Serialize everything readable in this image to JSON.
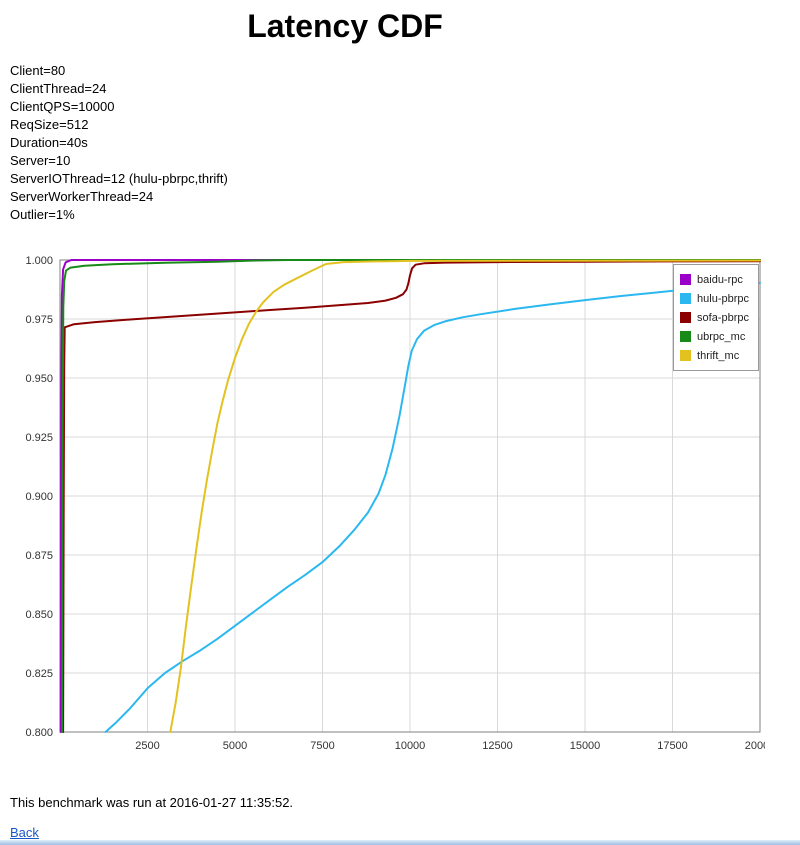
{
  "page": {
    "title": "Latency CDF",
    "bottom_strip_color": "#9dbfe4"
  },
  "params": {
    "lines": [
      "Client=80",
      "ClientThread=24",
      "ClientQPS=10000",
      "ReqSize=512",
      "Duration=40s",
      "Server=10",
      "ServerIOThread=12 (hulu-pbrpc,thrift)",
      "ServerWorkerThread=24",
      "Outlier=1%"
    ]
  },
  "footer": {
    "note": "This benchmark was run at 2016-01-27 11:35:52.",
    "back_label": "Back"
  },
  "chart_data": {
    "type": "line",
    "title": "Latency CDF",
    "xlabel": "",
    "ylabel": "",
    "xlim": [
      0,
      20000
    ],
    "ylim": [
      0.8,
      1.0
    ],
    "xticks": [
      2500,
      5000,
      7500,
      10000,
      12500,
      15000,
      17500,
      20000
    ],
    "yticks": [
      0.8,
      0.825,
      0.85,
      0.875,
      0.9,
      0.925,
      0.95,
      0.975,
      1.0
    ],
    "grid": true,
    "legend_position": "top-right",
    "series": [
      {
        "name": "baidu-rpc",
        "color": "#9a00c8",
        "points": [
          [
            20,
            0.8
          ],
          [
            35,
            0.94
          ],
          [
            55,
            0.985
          ],
          [
            90,
            0.996
          ],
          [
            160,
            0.999
          ],
          [
            320,
            1.0
          ],
          [
            20000,
            1.0
          ]
        ]
      },
      {
        "name": "hulu-pbrpc",
        "color": "#2bb8f0",
        "points": [
          [
            1300,
            0.8
          ],
          [
            1600,
            0.804
          ],
          [
            2000,
            0.81
          ],
          [
            2500,
            0.8185
          ],
          [
            3000,
            0.825
          ],
          [
            3500,
            0.83
          ],
          [
            4000,
            0.8345
          ],
          [
            4500,
            0.8395
          ],
          [
            5000,
            0.845
          ],
          [
            5500,
            0.8505
          ],
          [
            6000,
            0.856
          ],
          [
            6500,
            0.8615
          ],
          [
            7000,
            0.8665
          ],
          [
            7500,
            0.872
          ],
          [
            8000,
            0.879
          ],
          [
            8400,
            0.8855
          ],
          [
            8800,
            0.893
          ],
          [
            9100,
            0.901
          ],
          [
            9300,
            0.909
          ],
          [
            9500,
            0.92
          ],
          [
            9700,
            0.934
          ],
          [
            9850,
            0.9465
          ],
          [
            9950,
            0.955
          ],
          [
            10050,
            0.9615
          ],
          [
            10200,
            0.9665
          ],
          [
            10400,
            0.97
          ],
          [
            10700,
            0.9725
          ],
          [
            11000,
            0.974
          ],
          [
            11500,
            0.9757
          ],
          [
            12000,
            0.977
          ],
          [
            13000,
            0.9793
          ],
          [
            14000,
            0.9812
          ],
          [
            15000,
            0.983
          ],
          [
            16000,
            0.9847
          ],
          [
            17000,
            0.9862
          ],
          [
            18000,
            0.9877
          ],
          [
            19000,
            0.989
          ],
          [
            20000,
            0.9903
          ]
        ]
      },
      {
        "name": "sofa-pbrpc",
        "color": "#8b0000",
        "points": [
          [
            90,
            0.8
          ],
          [
            105,
            0.9
          ],
          [
            120,
            0.955
          ],
          [
            135,
            0.9715
          ],
          [
            400,
            0.9728
          ],
          [
            1000,
            0.9737
          ],
          [
            2000,
            0.9748
          ],
          [
            3000,
            0.9758
          ],
          [
            4000,
            0.9768
          ],
          [
            5000,
            0.9778
          ],
          [
            6000,
            0.9788
          ],
          [
            7000,
            0.9798
          ],
          [
            8000,
            0.9809
          ],
          [
            8800,
            0.9818
          ],
          [
            9300,
            0.9828
          ],
          [
            9600,
            0.984
          ],
          [
            9800,
            0.9855
          ],
          [
            9900,
            0.9875
          ],
          [
            9950,
            0.99
          ],
          [
            10000,
            0.9935
          ],
          [
            10060,
            0.9965
          ],
          [
            10160,
            0.998
          ],
          [
            10400,
            0.9986
          ],
          [
            11000,
            0.9989
          ],
          [
            12500,
            0.9991
          ],
          [
            15000,
            0.9993
          ],
          [
            17500,
            0.9994
          ],
          [
            20000,
            0.9995
          ]
        ]
      },
      {
        "name": "ubrpc_mc",
        "color": "#188a18",
        "points": [
          [
            60,
            0.8
          ],
          [
            75,
            0.93
          ],
          [
            95,
            0.98
          ],
          [
            120,
            0.991
          ],
          [
            170,
            0.9955
          ],
          [
            300,
            0.9968
          ],
          [
            700,
            0.9976
          ],
          [
            1500,
            0.9982
          ],
          [
            3000,
            0.9988
          ],
          [
            4500,
            0.9993
          ],
          [
            5600,
            0.9998
          ],
          [
            6500,
            1.0
          ],
          [
            20000,
            1.0
          ]
        ]
      },
      {
        "name": "thrift_mc",
        "color": "#e3c220",
        "points": [
          [
            3150,
            0.8
          ],
          [
            3300,
            0.812
          ],
          [
            3450,
            0.827
          ],
          [
            3600,
            0.845
          ],
          [
            3750,
            0.862
          ],
          [
            3900,
            0.878
          ],
          [
            4050,
            0.8935
          ],
          [
            4200,
            0.907
          ],
          [
            4350,
            0.9195
          ],
          [
            4500,
            0.931
          ],
          [
            4650,
            0.9405
          ],
          [
            4800,
            0.949
          ],
          [
            5000,
            0.9585
          ],
          [
            5200,
            0.9665
          ],
          [
            5400,
            0.973
          ],
          [
            5600,
            0.978
          ],
          [
            5800,
            0.982
          ],
          [
            6100,
            0.9865
          ],
          [
            6400,
            0.9895
          ],
          [
            6800,
            0.9925
          ],
          [
            7200,
            0.9955
          ],
          [
            7600,
            0.9983
          ],
          [
            8100,
            0.9991
          ],
          [
            9000,
            0.9994
          ],
          [
            10000,
            0.9996
          ],
          [
            20000,
            0.9998
          ]
        ]
      }
    ]
  }
}
